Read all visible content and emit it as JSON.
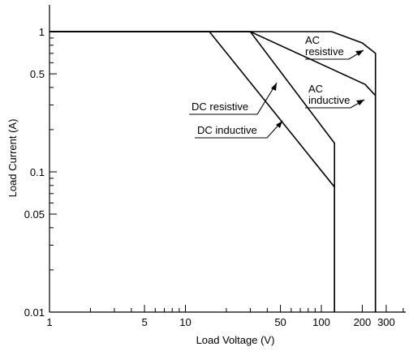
{
  "chart_data": {
    "type": "line",
    "title": "",
    "xlabel": "Load Voltage (V)",
    "ylabel": "Load Current (A)",
    "x_scale": "log",
    "y_scale": "log",
    "xlim": [
      1,
      500
    ],
    "ylim": [
      0.01,
      2
    ],
    "grid": false,
    "legend": "none",
    "x_ticks": [
      {
        "value": 1,
        "label": "1"
      },
      {
        "value": 5,
        "label": "5"
      },
      {
        "value": 10,
        "label": "10"
      },
      {
        "value": 50,
        "label": "50"
      },
      {
        "value": 100,
        "label": "100"
      },
      {
        "value": 200,
        "label": "200"
      },
      {
        "value": 300,
        "label": "300"
      }
    ],
    "x_minor_ticks": [
      2,
      3,
      4,
      6,
      7,
      8,
      9,
      20,
      30,
      40,
      60,
      70,
      80,
      90,
      400
    ],
    "y_ticks": [
      {
        "value": 0.01,
        "label": "0.01"
      },
      {
        "value": 0.05,
        "label": "0.05"
      },
      {
        "value": 0.1,
        "label": "0.1"
      },
      {
        "value": 0.5,
        "label": "0.5"
      },
      {
        "value": 1,
        "label": "1"
      }
    ],
    "y_minor_ticks": [
      0.02,
      0.03,
      0.04,
      0.06,
      0.07,
      0.08,
      0.09,
      0.2,
      0.3,
      0.4,
      0.6,
      0.7,
      0.8,
      0.9
    ],
    "series": [
      {
        "name": "AC resistive",
        "points": [
          [
            1,
            1
          ],
          [
            119,
            1
          ],
          [
            200,
            0.83
          ],
          [
            250,
            0.7
          ],
          [
            250,
            0.01
          ]
        ]
      },
      {
        "name": "AC inductive",
        "points": [
          [
            1,
            1
          ],
          [
            30,
            1
          ],
          [
            210,
            0.42
          ],
          [
            250,
            0.35
          ],
          [
            250,
            0.01
          ]
        ]
      },
      {
        "name": "DC resistive",
        "points": [
          [
            1,
            1
          ],
          [
            30,
            1
          ],
          [
            125,
            0.16
          ],
          [
            125,
            0.01
          ]
        ]
      },
      {
        "name": "DC inductive",
        "points": [
          [
            1,
            1
          ],
          [
            15,
            1
          ],
          [
            125,
            0.078
          ],
          [
            125,
            0.01
          ]
        ]
      }
    ],
    "annotations": [
      {
        "lines": [
          "AC",
          "resistive"
        ],
        "points_to": "AC resistive"
      },
      {
        "lines": [
          "AC",
          "inductive"
        ],
        "points_to": "AC inductive"
      },
      {
        "lines": [
          "DC resistive"
        ],
        "points_to": "DC resistive"
      },
      {
        "lines": [
          "DC inductive"
        ],
        "points_to": "DC inductive"
      }
    ]
  }
}
